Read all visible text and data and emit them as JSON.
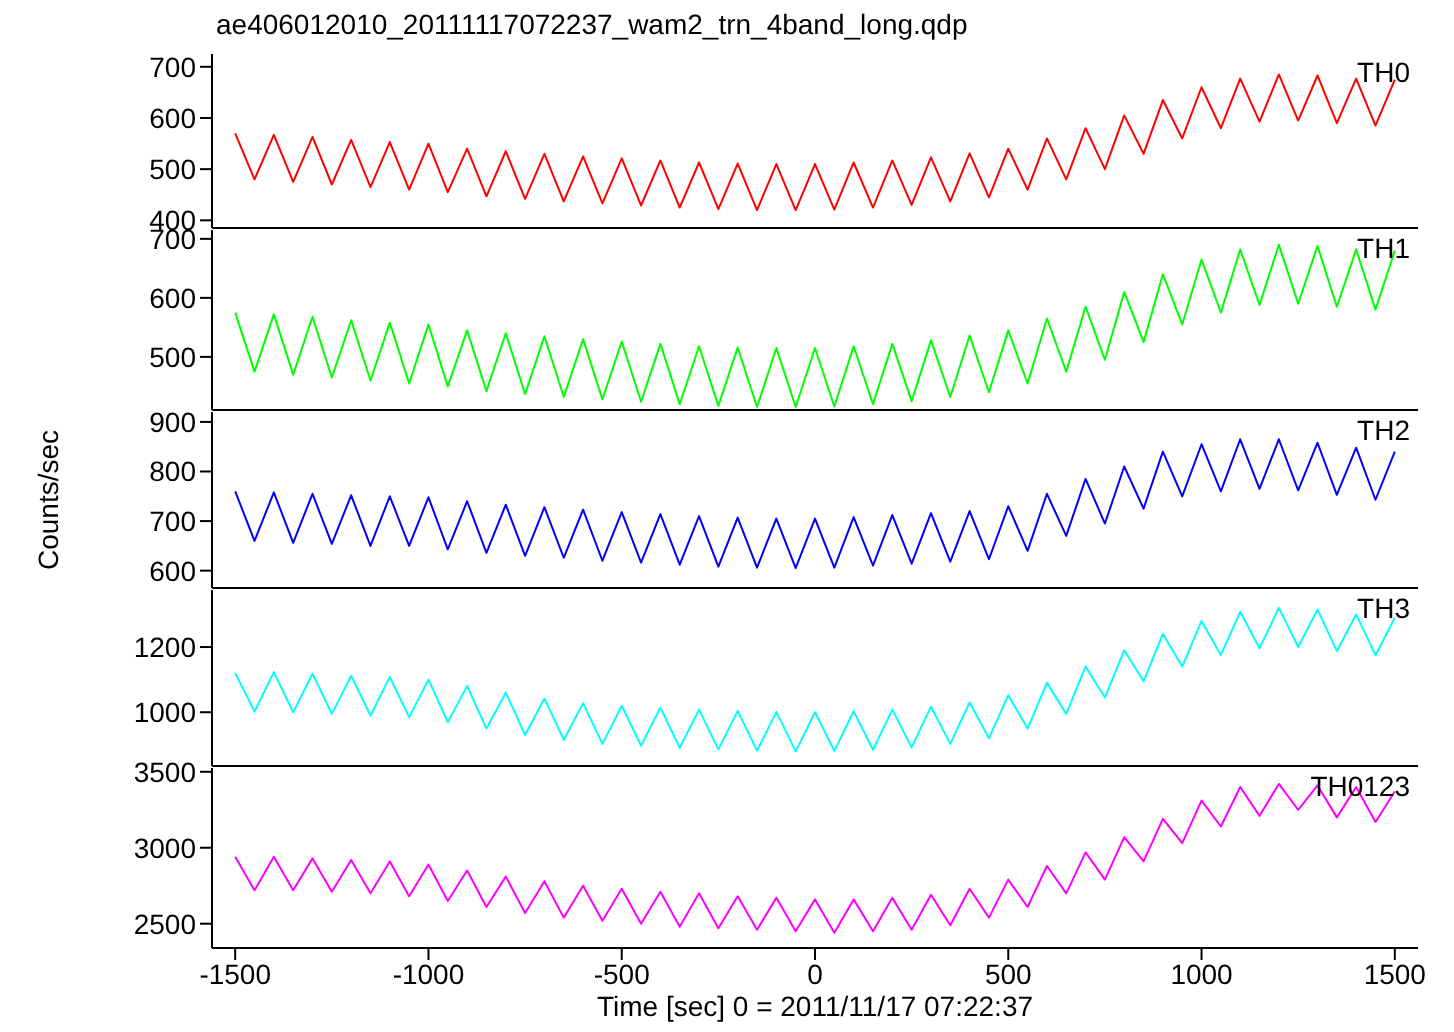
{
  "chart_data": [
    {
      "type": "line",
      "title": "ae406012010_20111117072237_wam2_trn_4band_long.qdp",
      "x": [
        -1500,
        -1450,
        -1400,
        -1350,
        -1300,
        -1250,
        -1200,
        -1150,
        -1100,
        -1050,
        -1000,
        -950,
        -900,
        -850,
        -800,
        -750,
        -700,
        -650,
        -600,
        -550,
        -500,
        -450,
        -400,
        -350,
        -300,
        -250,
        -200,
        -150,
        -100,
        -50,
        0,
        50,
        100,
        150,
        200,
        250,
        300,
        350,
        400,
        450,
        500,
        550,
        600,
        650,
        700,
        750,
        800,
        850,
        900,
        950,
        1000,
        1050,
        1100,
        1150,
        1200,
        1250,
        1300,
        1350,
        1400,
        1450,
        1500
      ],
      "xlim": [
        -1560,
        1560
      ],
      "xticks": [
        -1500,
        -1000,
        -500,
        0,
        500,
        1000,
        1500
      ],
      "ylim": [
        385,
        725
      ],
      "yticks": [
        400,
        500,
        600,
        700
      ],
      "tick_labels": "y",
      "series": [
        {
          "name": "TH0",
          "color": "#ff0000",
          "values": [
            570,
            480,
            567,
            475,
            563,
            470,
            557,
            465,
            553,
            460,
            550,
            455,
            540,
            447,
            535,
            442,
            530,
            437,
            525,
            433,
            521,
            429,
            517,
            425,
            513,
            422,
            511,
            420,
            510,
            420,
            510,
            421,
            513,
            425,
            517,
            430,
            523,
            437,
            531,
            445,
            540,
            460,
            560,
            480,
            580,
            500,
            605,
            530,
            635,
            560,
            660,
            580,
            677,
            593,
            685,
            595,
            683,
            590,
            677,
            585,
            675
          ]
        }
      ]
    },
    {
      "type": "line",
      "x": [
        -1500,
        -1450,
        -1400,
        -1350,
        -1300,
        -1250,
        -1200,
        -1150,
        -1100,
        -1050,
        -1000,
        -950,
        -900,
        -850,
        -800,
        -750,
        -700,
        -650,
        -600,
        -550,
        -500,
        -450,
        -400,
        -350,
        -300,
        -250,
        -200,
        -150,
        -100,
        -50,
        0,
        50,
        100,
        150,
        200,
        250,
        300,
        350,
        400,
        450,
        500,
        550,
        600,
        650,
        700,
        750,
        800,
        850,
        900,
        950,
        1000,
        1050,
        1100,
        1150,
        1200,
        1250,
        1300,
        1350,
        1400,
        1450,
        1500
      ],
      "xlim": [
        -1560,
        1560
      ],
      "xticks": [
        -1500,
        -1000,
        -500,
        0,
        500,
        1000,
        1500
      ],
      "ylim": [
        410,
        715
      ],
      "yticks": [
        500,
        600,
        700
      ],
      "tick_labels": "y",
      "series": [
        {
          "name": "TH1",
          "color": "#00ff00",
          "values": [
            575,
            475,
            572,
            470,
            568,
            465,
            562,
            460,
            558,
            455,
            555,
            450,
            545,
            442,
            540,
            437,
            535,
            432,
            530,
            428,
            526,
            424,
            522,
            420,
            518,
            417,
            516,
            415,
            515,
            415,
            515,
            416,
            518,
            420,
            522,
            425,
            528,
            432,
            536,
            440,
            545,
            455,
            565,
            475,
            585,
            495,
            610,
            525,
            640,
            555,
            665,
            575,
            682,
            588,
            690,
            590,
            688,
            585,
            682,
            580,
            680
          ]
        }
      ]
    },
    {
      "type": "line",
      "ylabel": "Counts/sec",
      "x": [
        -1500,
        -1450,
        -1400,
        -1350,
        -1300,
        -1250,
        -1200,
        -1150,
        -1100,
        -1050,
        -1000,
        -950,
        -900,
        -850,
        -800,
        -750,
        -700,
        -650,
        -600,
        -550,
        -500,
        -450,
        -400,
        -350,
        -300,
        -250,
        -200,
        -150,
        -100,
        -50,
        0,
        50,
        100,
        150,
        200,
        250,
        300,
        350,
        400,
        450,
        500,
        550,
        600,
        650,
        700,
        750,
        800,
        850,
        900,
        950,
        1000,
        1050,
        1100,
        1150,
        1200,
        1250,
        1300,
        1350,
        1400,
        1450,
        1500
      ],
      "xlim": [
        -1560,
        1560
      ],
      "xticks": [
        -1500,
        -1000,
        -500,
        0,
        500,
        1000,
        1500
      ],
      "ylim": [
        565,
        920
      ],
      "yticks": [
        600,
        700,
        800,
        900
      ],
      "tick_labels": "y",
      "series": [
        {
          "name": "TH2",
          "color": "#0000ff",
          "values": [
            760,
            660,
            758,
            656,
            755,
            654,
            752,
            650,
            750,
            650,
            748,
            643,
            740,
            636,
            733,
            630,
            728,
            626,
            723,
            620,
            718,
            616,
            714,
            612,
            710,
            608,
            707,
            606,
            705,
            605,
            705,
            606,
            708,
            610,
            712,
            614,
            716,
            618,
            720,
            623,
            730,
            640,
            755,
            670,
            785,
            695,
            810,
            725,
            840,
            750,
            855,
            760,
            865,
            765,
            865,
            762,
            858,
            753,
            848,
            743,
            840
          ]
        }
      ]
    },
    {
      "type": "line",
      "x": [
        -1500,
        -1450,
        -1400,
        -1350,
        -1300,
        -1250,
        -1200,
        -1150,
        -1100,
        -1050,
        -1000,
        -950,
        -900,
        -850,
        -800,
        -750,
        -700,
        -650,
        -600,
        -550,
        -500,
        -450,
        -400,
        -350,
        -300,
        -250,
        -200,
        -150,
        -100,
        -50,
        0,
        50,
        100,
        150,
        200,
        250,
        300,
        350,
        400,
        450,
        500,
        550,
        600,
        650,
        700,
        750,
        800,
        850,
        900,
        950,
        1000,
        1050,
        1100,
        1150,
        1200,
        1250,
        1300,
        1350,
        1400,
        1450,
        1500
      ],
      "xlim": [
        -1560,
        1560
      ],
      "xticks": [
        -1500,
        -1000,
        -500,
        0,
        500,
        1000,
        1500
      ],
      "ylim": [
        835,
        1375
      ],
      "yticks": [
        1000,
        1200
      ],
      "tick_labels": "y",
      "series": [
        {
          "name": "TH3",
          "color": "#00ffff",
          "values": [
            1120,
            1002,
            1123,
            1000,
            1118,
            995,
            1112,
            990,
            1108,
            985,
            1100,
            970,
            1080,
            950,
            1060,
            930,
            1042,
            915,
            1028,
            903,
            1020,
            897,
            1014,
            891,
            1008,
            886,
            1004,
            882,
            1001,
            880,
            1000,
            881,
            1003,
            885,
            1008,
            892,
            1017,
            903,
            1030,
            920,
            1052,
            950,
            1090,
            995,
            1140,
            1045,
            1190,
            1095,
            1240,
            1140,
            1280,
            1175,
            1308,
            1196,
            1320,
            1200,
            1315,
            1188,
            1300,
            1175,
            1290
          ]
        }
      ]
    },
    {
      "type": "line",
      "xlabel": "Time [sec] 0 = 2011/11/17 07:22:37",
      "x": [
        -1500,
        -1450,
        -1400,
        -1350,
        -1300,
        -1250,
        -1200,
        -1150,
        -1100,
        -1050,
        -1000,
        -950,
        -900,
        -850,
        -800,
        -750,
        -700,
        -650,
        -600,
        -550,
        -500,
        -450,
        -400,
        -350,
        -300,
        -250,
        -200,
        -150,
        -100,
        -50,
        0,
        50,
        100,
        150,
        200,
        250,
        300,
        350,
        400,
        450,
        500,
        550,
        600,
        650,
        700,
        750,
        800,
        850,
        900,
        950,
        1000,
        1050,
        1100,
        1150,
        1200,
        1250,
        1300,
        1350,
        1400,
        1450,
        1500
      ],
      "xlim": [
        -1560,
        1560
      ],
      "xticks": [
        -1500,
        -1000,
        -500,
        0,
        500,
        1000,
        1500
      ],
      "ylim": [
        2340,
        3525
      ],
      "yticks": [
        2500,
        3000,
        3500
      ],
      "series": [
        {
          "name": "TH0123",
          "color": "#ff00ff",
          "values": [
            2940,
            2720,
            2940,
            2720,
            2930,
            2710,
            2920,
            2700,
            2910,
            2680,
            2890,
            2650,
            2850,
            2610,
            2810,
            2570,
            2780,
            2540,
            2750,
            2520,
            2730,
            2500,
            2710,
            2480,
            2700,
            2470,
            2680,
            2460,
            2670,
            2450,
            2660,
            2440,
            2660,
            2450,
            2670,
            2460,
            2690,
            2490,
            2730,
            2540,
            2790,
            2610,
            2880,
            2700,
            2970,
            2790,
            3070,
            2910,
            3190,
            3030,
            3310,
            3140,
            3400,
            3210,
            3420,
            3250,
            3410,
            3200,
            3400,
            3170,
            3370
          ]
        }
      ]
    }
  ]
}
